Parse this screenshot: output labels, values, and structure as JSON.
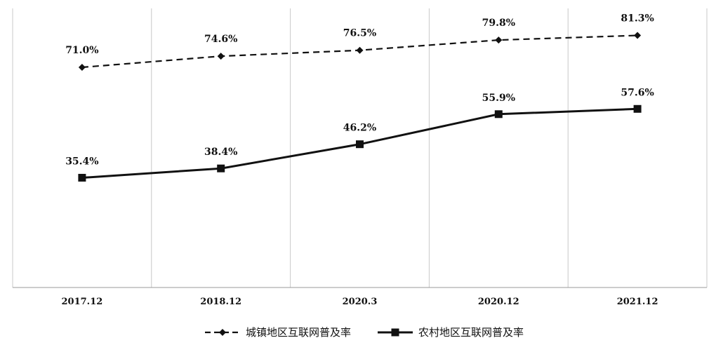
{
  "chart_data": {
    "type": "line",
    "categories": [
      "2017.12",
      "2018.12",
      "2020.3",
      "2020.12",
      "2021.12"
    ],
    "series": [
      {
        "name": "城镇地区互联网普及率",
        "values": [
          71.0,
          74.6,
          76.5,
          79.8,
          81.3
        ],
        "labels": [
          "71.0%",
          "74.6%",
          "76.5%",
          "79.8%",
          "81.3%"
        ],
        "line_style": "dashed",
        "marker": "diamond",
        "color": "#111111"
      },
      {
        "name": "农村地区互联网普及率",
        "values": [
          35.4,
          38.4,
          46.2,
          55.9,
          57.6
        ],
        "labels": [
          "35.4%",
          "38.4%",
          "46.2%",
          "55.9%",
          "57.6%"
        ],
        "line_style": "solid",
        "marker": "square",
        "color": "#111111"
      }
    ],
    "title": "",
    "xlabel": "",
    "ylabel": "",
    "ylim": [
      0,
      90
    ],
    "grid": "vertical",
    "legend_position": "bottom"
  }
}
